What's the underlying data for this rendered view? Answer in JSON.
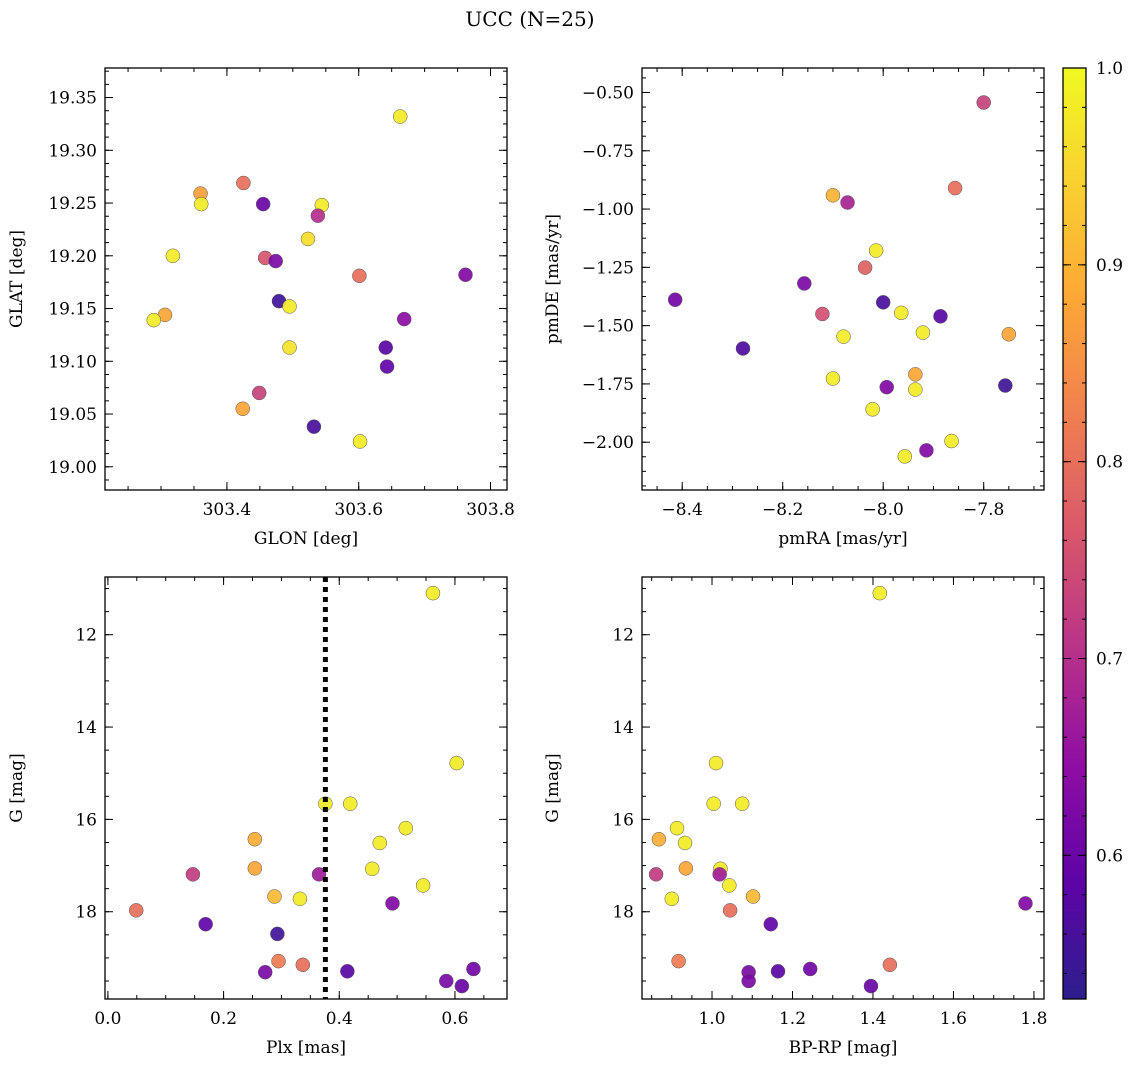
{
  "title": "UCC (N=25)",
  "chart_data": [
    {
      "type": "scatter",
      "panel": "top-left",
      "xlabel": "GLON [deg]",
      "ylabel": "GLAT [deg]",
      "xlim": [
        303.215,
        303.825
      ],
      "ylim": [
        18.978,
        19.378
      ],
      "xticks": [
        303.4,
        303.6,
        303.8
      ],
      "xtick_labels": [
        "303.4",
        "303.6",
        "303.8"
      ],
      "yticks": [
        19.0,
        19.05,
        19.1,
        19.15,
        19.2,
        19.25,
        19.3,
        19.35
      ],
      "ytick_labels": [
        "19.00",
        "19.05",
        "19.10",
        "19.15",
        "19.20",
        "19.25",
        "19.30",
        "19.35"
      ],
      "y_inverted": false,
      "points": [
        {
          "x": 303.663,
          "y": 19.332,
          "c": 0.98
        },
        {
          "x": 303.36,
          "y": 19.259,
          "c": 0.87
        },
        {
          "x": 303.425,
          "y": 19.269,
          "c": 0.8
        },
        {
          "x": 303.361,
          "y": 19.249,
          "c": 0.98
        },
        {
          "x": 303.455,
          "y": 19.249,
          "c": 0.6
        },
        {
          "x": 303.544,
          "y": 19.248,
          "c": 0.98
        },
        {
          "x": 303.538,
          "y": 19.238,
          "c": 0.7
        },
        {
          "x": 303.523,
          "y": 19.216,
          "c": 0.96
        },
        {
          "x": 303.318,
          "y": 19.2,
          "c": 0.98
        },
        {
          "x": 303.458,
          "y": 19.198,
          "c": 0.76
        },
        {
          "x": 303.474,
          "y": 19.195,
          "c": 0.62
        },
        {
          "x": 303.601,
          "y": 19.181,
          "c": 0.8
        },
        {
          "x": 303.762,
          "y": 19.182,
          "c": 0.63
        },
        {
          "x": 303.479,
          "y": 19.157,
          "c": 0.55
        },
        {
          "x": 303.495,
          "y": 19.152,
          "c": 0.98
        },
        {
          "x": 303.306,
          "y": 19.144,
          "c": 0.88
        },
        {
          "x": 303.289,
          "y": 19.139,
          "c": 0.98
        },
        {
          "x": 303.669,
          "y": 19.14,
          "c": 0.64
        },
        {
          "x": 303.641,
          "y": 19.113,
          "c": 0.58
        },
        {
          "x": 303.495,
          "y": 19.113,
          "c": 0.97
        },
        {
          "x": 303.643,
          "y": 19.095,
          "c": 0.59
        },
        {
          "x": 303.449,
          "y": 19.07,
          "c": 0.73
        },
        {
          "x": 303.424,
          "y": 19.055,
          "c": 0.88
        },
        {
          "x": 303.532,
          "y": 19.038,
          "c": 0.56
        },
        {
          "x": 303.602,
          "y": 19.024,
          "c": 0.98
        }
      ]
    },
    {
      "type": "scatter",
      "panel": "top-right",
      "xlabel": "pmRA [mas/yr]",
      "ylabel": "pmDE [mas/yr]",
      "xlim": [
        -8.48,
        -7.68
      ],
      "ylim": [
        -2.205,
        -0.395
      ],
      "xticks": [
        -8.4,
        -8.2,
        -8.0,
        -7.8
      ],
      "xtick_labels": [
        "−8.4",
        "−8.2",
        "−8.0",
        "−7.8"
      ],
      "yticks": [
        -2.0,
        -1.75,
        -1.5,
        -1.25,
        -1.0,
        -0.75,
        -0.5
      ],
      "ytick_labels": [
        "−2.00",
        "−1.75",
        "−1.50",
        "−1.25",
        "−1.00",
        "−0.75",
        "−0.50"
      ],
      "y_inverted": false,
      "points": [
        {
          "x": -7.8,
          "y": -0.543,
          "c": 0.73
        },
        {
          "x": -7.857,
          "y": -0.91,
          "c": 0.8
        },
        {
          "x": -8.1,
          "y": -0.941,
          "c": 0.9
        },
        {
          "x": -8.071,
          "y": -0.972,
          "c": 0.68
        },
        {
          "x": -8.014,
          "y": -1.178,
          "c": 0.98
        },
        {
          "x": -8.036,
          "y": -1.251,
          "c": 0.78
        },
        {
          "x": -8.157,
          "y": -1.319,
          "c": 0.62
        },
        {
          "x": -8.414,
          "y": -1.389,
          "c": 0.61
        },
        {
          "x": -8.0,
          "y": -1.4,
          "c": 0.56
        },
        {
          "x": -8.121,
          "y": -1.45,
          "c": 0.75
        },
        {
          "x": -7.964,
          "y": -1.445,
          "c": 0.98
        },
        {
          "x": -7.886,
          "y": -1.46,
          "c": 0.58
        },
        {
          "x": -7.921,
          "y": -1.53,
          "c": 0.98
        },
        {
          "x": -7.75,
          "y": -1.537,
          "c": 0.88
        },
        {
          "x": -8.079,
          "y": -1.547,
          "c": 0.98
        },
        {
          "x": -8.279,
          "y": -1.598,
          "c": 0.57
        },
        {
          "x": -7.936,
          "y": -1.709,
          "c": 0.88
        },
        {
          "x": -8.1,
          "y": -1.727,
          "c": 0.98
        },
        {
          "x": -7.993,
          "y": -1.764,
          "c": 0.63
        },
        {
          "x": -7.936,
          "y": -1.774,
          "c": 0.98
        },
        {
          "x": -7.757,
          "y": -1.757,
          "c": 0.55
        },
        {
          "x": -8.021,
          "y": -1.859,
          "c": 0.98
        },
        {
          "x": -7.864,
          "y": -1.995,
          "c": 0.98
        },
        {
          "x": -7.914,
          "y": -2.035,
          "c": 0.63
        },
        {
          "x": -7.957,
          "y": -2.061,
          "c": 0.98
        }
      ]
    },
    {
      "type": "scatter",
      "panel": "bottom-left",
      "xlabel": "Plx [mas]",
      "ylabel": "G [mag]",
      "xlim": [
        -0.005,
        0.69
      ],
      "ylim": [
        10.75,
        19.89
      ],
      "xticks": [
        0.0,
        0.2,
        0.4,
        0.6
      ],
      "xtick_labels": [
        "0.0",
        "0.2",
        "0.4",
        "0.6"
      ],
      "yticks": [
        12,
        14,
        16,
        18
      ],
      "ytick_labels": [
        "12",
        "14",
        "16",
        "18"
      ],
      "y_inverted": true,
      "vline": {
        "x": 0.376,
        "style": "dotted",
        "color": "#000000"
      },
      "points": [
        {
          "x": 0.562,
          "y": 11.1,
          "c": 0.98
        },
        {
          "x": 0.603,
          "y": 14.78,
          "c": 0.98
        },
        {
          "x": 0.376,
          "y": 15.66,
          "c": 0.98
        },
        {
          "x": 0.419,
          "y": 15.66,
          "c": 0.98
        },
        {
          "x": 0.515,
          "y": 16.19,
          "c": 0.98
        },
        {
          "x": 0.254,
          "y": 16.43,
          "c": 0.89
        },
        {
          "x": 0.47,
          "y": 16.51,
          "c": 0.98
        },
        {
          "x": 0.254,
          "y": 17.06,
          "c": 0.88
        },
        {
          "x": 0.457,
          "y": 17.07,
          "c": 0.98
        },
        {
          "x": 0.147,
          "y": 17.19,
          "c": 0.72
        },
        {
          "x": 0.365,
          "y": 17.19,
          "c": 0.67
        },
        {
          "x": 0.545,
          "y": 17.43,
          "c": 0.98
        },
        {
          "x": 0.288,
          "y": 17.67,
          "c": 0.91
        },
        {
          "x": 0.332,
          "y": 17.72,
          "c": 0.98
        },
        {
          "x": 0.492,
          "y": 17.82,
          "c": 0.63
        },
        {
          "x": 0.049,
          "y": 17.97,
          "c": 0.8
        },
        {
          "x": 0.169,
          "y": 18.27,
          "c": 0.59
        },
        {
          "x": 0.293,
          "y": 18.48,
          "c": 0.55
        },
        {
          "x": 0.295,
          "y": 19.07,
          "c": 0.82
        },
        {
          "x": 0.337,
          "y": 19.15,
          "c": 0.8
        },
        {
          "x": 0.272,
          "y": 19.31,
          "c": 0.62
        },
        {
          "x": 0.414,
          "y": 19.29,
          "c": 0.58
        },
        {
          "x": 0.632,
          "y": 19.24,
          "c": 0.61
        },
        {
          "x": 0.585,
          "y": 19.5,
          "c": 0.62
        },
        {
          "x": 0.612,
          "y": 19.61,
          "c": 0.6
        }
      ]
    },
    {
      "type": "scatter",
      "panel": "bottom-right",
      "xlabel": "BP-RP [mag]",
      "ylabel": "G [mag]",
      "xlim": [
        0.826,
        1.825
      ],
      "ylim": [
        10.75,
        19.89
      ],
      "xticks": [
        1.0,
        1.2,
        1.4,
        1.6,
        1.8
      ],
      "xtick_labels": [
        "1.0",
        "1.2",
        "1.4",
        "1.6",
        "1.8"
      ],
      "yticks": [
        12,
        14,
        16,
        18
      ],
      "ytick_labels": [
        "12",
        "14",
        "16",
        "18"
      ],
      "y_inverted": true,
      "points": [
        {
          "x": 1.417,
          "y": 11.1,
          "c": 0.98
        },
        {
          "x": 1.01,
          "y": 14.78,
          "c": 0.98
        },
        {
          "x": 1.004,
          "y": 15.66,
          "c": 0.98
        },
        {
          "x": 1.075,
          "y": 15.66,
          "c": 0.98
        },
        {
          "x": 0.913,
          "y": 16.19,
          "c": 0.98
        },
        {
          "x": 0.868,
          "y": 16.43,
          "c": 0.89
        },
        {
          "x": 0.933,
          "y": 16.51,
          "c": 0.98
        },
        {
          "x": 0.935,
          "y": 17.06,
          "c": 0.88
        },
        {
          "x": 1.021,
          "y": 17.07,
          "c": 0.98
        },
        {
          "x": 0.861,
          "y": 17.19,
          "c": 0.72
        },
        {
          "x": 1.019,
          "y": 17.19,
          "c": 0.67
        },
        {
          "x": 1.043,
          "y": 17.43,
          "c": 0.98
        },
        {
          "x": 1.102,
          "y": 17.67,
          "c": 0.91
        },
        {
          "x": 0.9,
          "y": 17.72,
          "c": 0.98
        },
        {
          "x": 1.779,
          "y": 17.82,
          "c": 0.63
        },
        {
          "x": 1.045,
          "y": 17.97,
          "c": 0.8
        },
        {
          "x": 1.146,
          "y": 18.27,
          "c": 0.59
        },
        {
          "x": 0.917,
          "y": 19.07,
          "c": 0.82
        },
        {
          "x": 1.442,
          "y": 19.15,
          "c": 0.8
        },
        {
          "x": 1.244,
          "y": 19.24,
          "c": 0.61
        },
        {
          "x": 1.091,
          "y": 19.31,
          "c": 0.62
        },
        {
          "x": 1.164,
          "y": 19.29,
          "c": 0.58
        },
        {
          "x": 1.091,
          "y": 19.5,
          "c": 0.62
        },
        {
          "x": 1.395,
          "y": 19.61,
          "c": 0.6
        }
      ]
    }
  ],
  "colorbar": {
    "cmap": "plasma",
    "vmin": 0.527,
    "vmax": 1.0,
    "ticks": [
      0.6,
      0.7,
      0.8,
      0.9,
      1.0
    ],
    "tick_labels": [
      "0.6",
      "0.7",
      "0.8",
      "0.9",
      "1.0"
    ],
    "colors": [
      "#2c1f8c",
      "#5e03a7",
      "#8f0da4",
      "#b83289",
      "#d8576b",
      "#ef7e50",
      "#fca636",
      "#f9d030",
      "#f0f921"
    ]
  }
}
